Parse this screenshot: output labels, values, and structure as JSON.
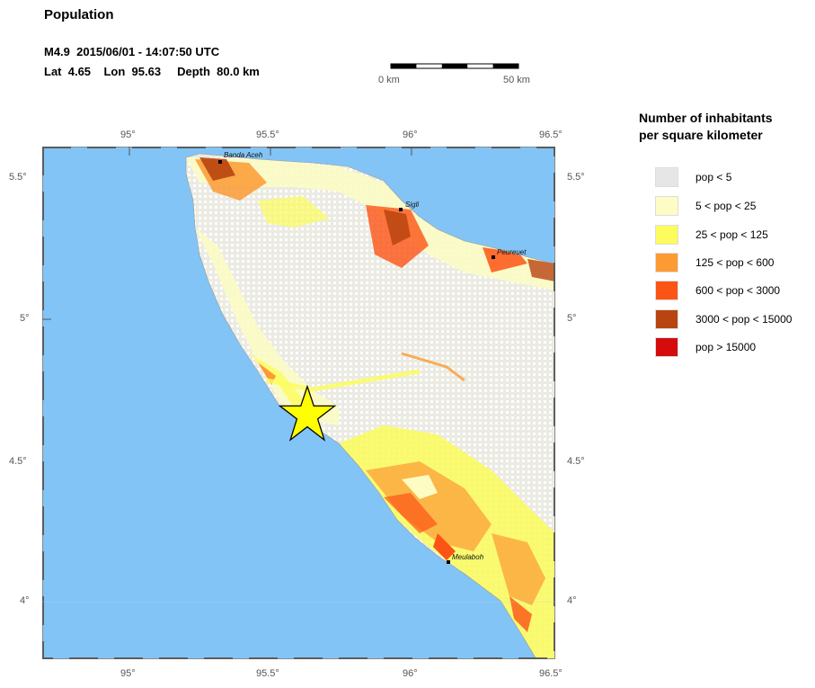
{
  "title": "Population",
  "event": {
    "line1": "M4.9  2015/06/01 - 14:07:50 UTC",
    "line2": "Lat  4.65    Lon  95.63     Depth  80.0 km"
  },
  "scale_bar": {
    "start_label": "0 km",
    "end_label": "50 km"
  },
  "axes": {
    "top_lon_labels": [
      "95°",
      "95.5°",
      "96°",
      "96.5°"
    ],
    "bottom_lon_labels": [
      "95°",
      "95.5°",
      "96°",
      "96.5°"
    ],
    "left_lat_labels": [
      "5.5°",
      "5°",
      "4.5°",
      "4°"
    ],
    "right_lat_labels": [
      "5.5°",
      "5°",
      "4.5°",
      "4°"
    ]
  },
  "cities": [
    {
      "name": "Banda Aceh"
    },
    {
      "name": "Sigli"
    },
    {
      "name": "Peureuet"
    },
    {
      "name": "Meulaboh"
    }
  ],
  "legend": {
    "title_line1": "Number of inhabitants",
    "title_line2": "per square kilometer",
    "items": [
      {
        "label": "pop < 5",
        "color": "#e6e6e6"
      },
      {
        "label": "5 < pop < 25",
        "color": "#fcfcc4"
      },
      {
        "label": "25 < pop < 125",
        "color": "#fcfc5c"
      },
      {
        "label": "125 < pop < 600",
        "color": "#fc9a34"
      },
      {
        "label": "600 < pop < 3000",
        "color": "#fc5414"
      },
      {
        "label": "3000 < pop < 15000",
        "color": "#b84410"
      },
      {
        "label": "pop > 15000",
        "color": "#d40c0c"
      }
    ]
  },
  "colors": {
    "ocean": "#82c4f6",
    "land_base": "#ebebe3",
    "epicenter": "#ffff00"
  },
  "epicenter_icon": "star-icon"
}
